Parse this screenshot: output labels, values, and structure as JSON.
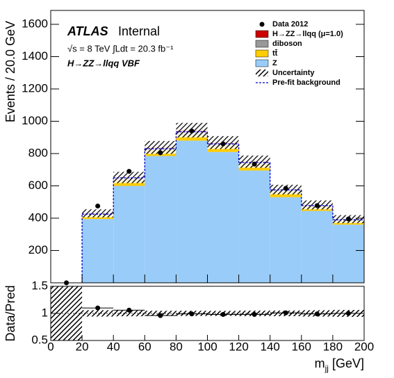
{
  "chart_data": {
    "type": "histogram",
    "experiment": "ATLAS",
    "status": "Internal",
    "energy_lumi": "√s = 8 TeV  ∫Ldt = 20.3 fb⁻¹",
    "channel": "H→ZZ→llqq VBF",
    "ylabel": "Events / 20.0 GeV",
    "xlabel": {
      "base": "m",
      "sub": "jj",
      "unit": "[GeV]"
    },
    "bins": [
      0,
      20,
      40,
      60,
      80,
      100,
      120,
      140,
      160,
      180,
      200
    ],
    "xlim": [
      0,
      200
    ],
    "xticks": [
      0,
      20,
      40,
      60,
      80,
      100,
      120,
      140,
      160,
      180,
      200
    ],
    "ylim": [
      0,
      1686
    ],
    "yticks": [
      200,
      400,
      600,
      800,
      1000,
      1200,
      1400,
      1600
    ],
    "series": [
      {
        "name": "Z",
        "color": "#99ccf8",
        "values": [
          0,
          395,
          600,
          785,
          880,
          810,
          695,
          530,
          445,
          360
        ]
      },
      {
        "name": "tt̄",
        "color": "#ffcc00",
        "values": [
          0,
          25,
          35,
          35,
          35,
          35,
          35,
          32,
          25,
          22
        ]
      },
      {
        "name": "diboson",
        "color": "#999999",
        "values": [
          0,
          8,
          12,
          12,
          15,
          15,
          15,
          12,
          10,
          10
        ]
      },
      {
        "name": "H→ZZ→llqq (μ=1.0)",
        "color": "#cc0000",
        "values": [
          0,
          2,
          5,
          6,
          15,
          8,
          5,
          3,
          2,
          2
        ]
      }
    ],
    "data": {
      "name": "Data 2012",
      "color": "#000000",
      "values": [
        0,
        475,
        690,
        805,
        940,
        860,
        735,
        585,
        478,
        395
      ]
    },
    "uncertainty": {
      "name": "Uncertainty",
      "values": [
        0,
        25,
        35,
        40,
        45,
        40,
        38,
        30,
        28,
        25
      ]
    },
    "prefit": {
      "name": "Pre-fit background",
      "color": "#0000cc",
      "values": [
        0,
        425,
        650,
        830,
        935,
        860,
        745,
        575,
        478,
        390
      ]
    },
    "ratio": {
      "ylabel": "Data/Pred",
      "ylim": [
        0.5,
        1.5
      ],
      "yticks": [
        0.5,
        1,
        1.5
      ],
      "values": [
        null,
        1.1,
        1.06,
        0.96,
        0.99,
        0.98,
        0.98,
        1.01,
        0.99,
        1.0
      ]
    }
  }
}
